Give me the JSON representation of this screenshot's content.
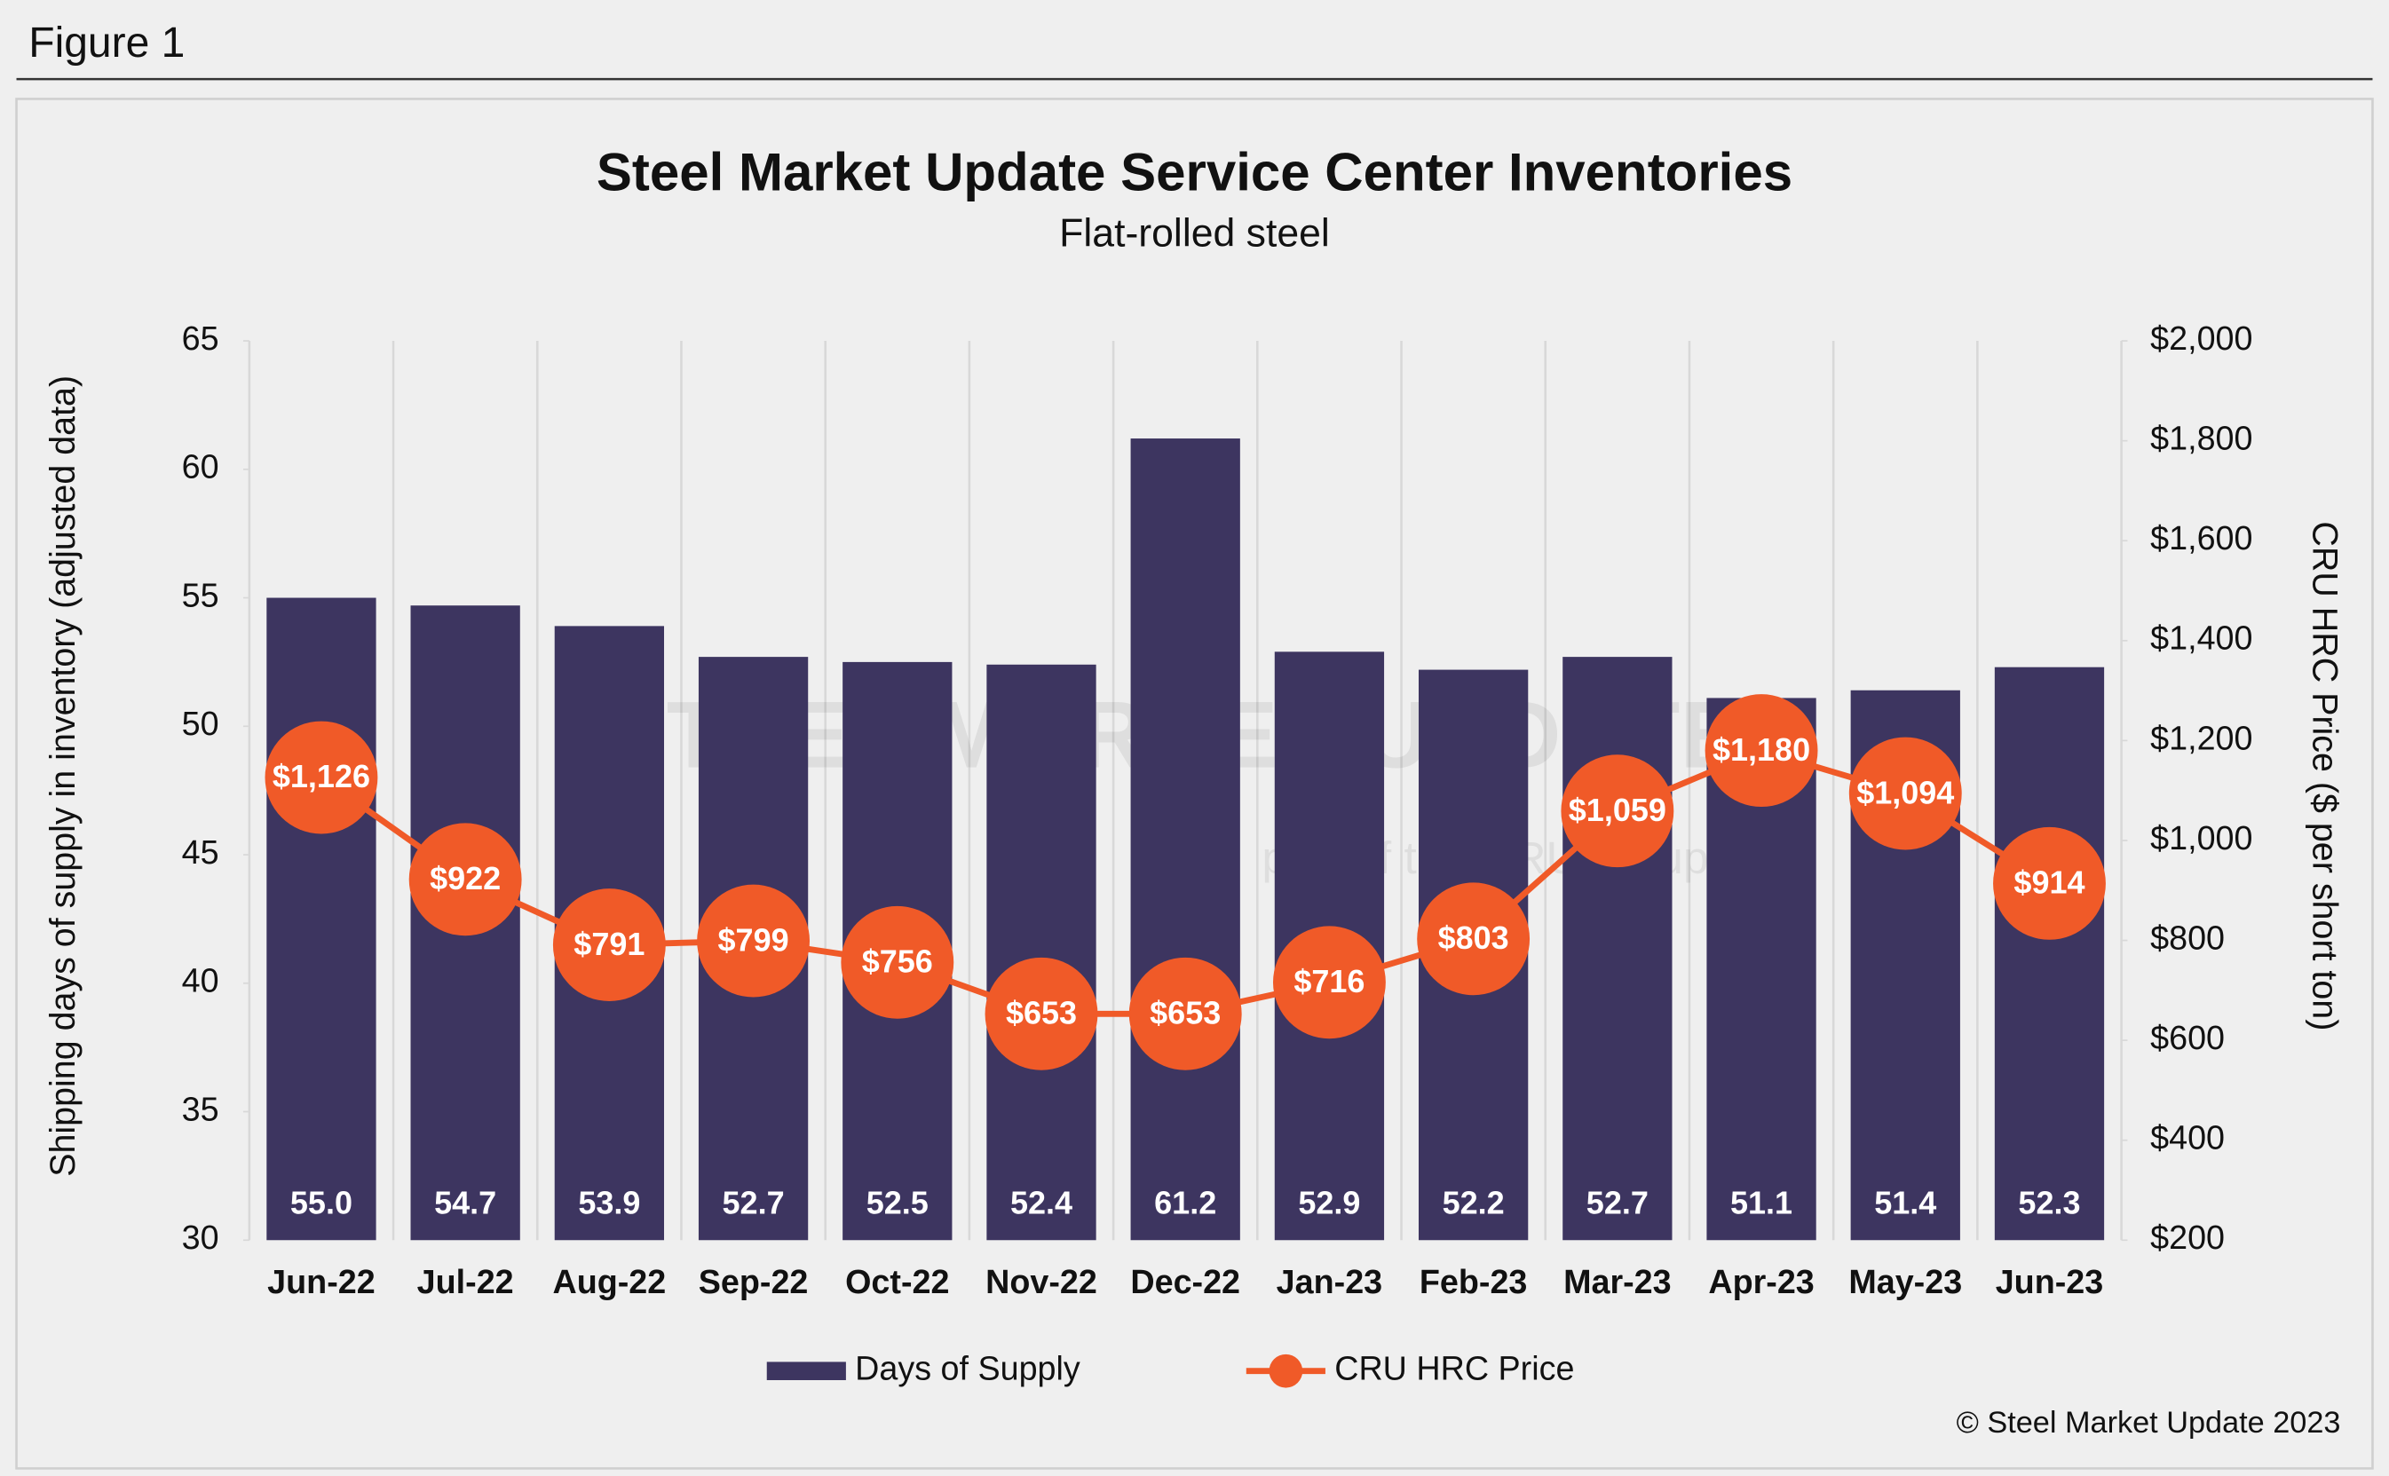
{
  "figure_label": "Figure 1",
  "copyright": "© Steel Market Update 2023",
  "watermark": {
    "text": "STEEL MARKET UPDATE",
    "subtext": "part of the CRU group"
  },
  "chart_data": {
    "type": "bar-line",
    "title": "Steel Market Update Service Center Inventories",
    "subtitle": "Flat-rolled steel",
    "y_label": "Shipping days of supply in inventory (adjusted data)",
    "y2_label": "CRU HRC Price ($ per short ton)",
    "categories": [
      "Jun-22",
      "Jul-22",
      "Aug-22",
      "Sep-22",
      "Oct-22",
      "Nov-22",
      "Dec-22",
      "Jan-23",
      "Feb-23",
      "Mar-23",
      "Apr-23",
      "May-23",
      "Jun-23"
    ],
    "ylim": [
      30,
      65
    ],
    "yticks": [
      30,
      35,
      40,
      45,
      50,
      55,
      60,
      65
    ],
    "y2lim": [
      200,
      2000
    ],
    "y2ticks": [
      {
        "value": 200,
        "label": "$200"
      },
      {
        "value": 400,
        "label": "$400"
      },
      {
        "value": 600,
        "label": "$600"
      },
      {
        "value": 800,
        "label": "$800"
      },
      {
        "value": 1000,
        "label": "$1,000"
      },
      {
        "value": 1200,
        "label": "$1,200"
      },
      {
        "value": 1400,
        "label": "$1,400"
      },
      {
        "value": 1600,
        "label": "$1,600"
      },
      {
        "value": 1800,
        "label": "$1,800"
      },
      {
        "value": 2000,
        "label": "$2,000"
      }
    ],
    "series": [
      {
        "name": "Days of Supply",
        "type": "bar",
        "color": "#3d3560",
        "values": [
          55.0,
          54.7,
          53.9,
          52.7,
          52.5,
          52.4,
          61.2,
          52.9,
          52.2,
          52.7,
          51.1,
          51.4,
          52.3
        ],
        "value_labels": [
          "55.0",
          "54.7",
          "53.9",
          "52.7",
          "52.5",
          "52.4",
          "61.2",
          "52.9",
          "52.2",
          "52.7",
          "51.1",
          "51.4",
          "52.3"
        ]
      },
      {
        "name": "CRU HRC Price",
        "type": "line",
        "axis": "y2",
        "color": "#f05a28",
        "values": [
          1126,
          922,
          791,
          799,
          756,
          653,
          653,
          716,
          803,
          1059,
          1180,
          1094,
          914
        ],
        "value_labels": [
          "$1,126",
          "$922",
          "$791",
          "$799",
          "$756",
          "$653",
          "$653",
          "$716",
          "$803",
          "$1,059",
          "$1,180",
          "$1,094",
          "$914"
        ]
      }
    ]
  }
}
